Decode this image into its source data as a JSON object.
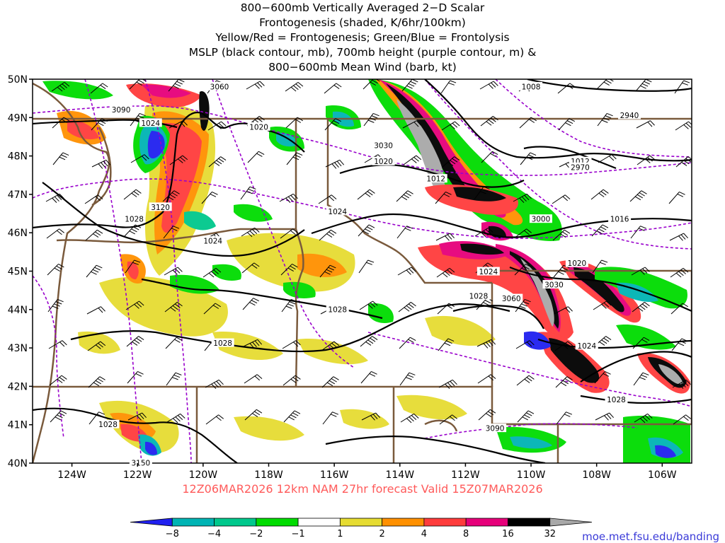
{
  "title_lines": [
    "800−600mb Vertically Averaged 2−D Scalar",
    "Frontogenesis (shaded, K/6hr/100km)",
    "Yellow/Red = Frontogenesis;  Green/Blue = Frontolysis",
    "MSLP (black contour, mb), 700mb height (purple contour, m) &",
    "800−600mb Mean Wind (barb, kt)"
  ],
  "footer_run": "12Z06MAR2026  12km  NAM  27hr  forecast  Valid  15Z07MAR2026",
  "footer_url": "moe.met.fsu.edu/banding",
  "colors": {
    "footer_run": "#ff5a5a",
    "footer_url": "#3a3ad8",
    "border": "#7a5a3c",
    "mslp": "#000000",
    "height": "#9900cc"
  },
  "chart_data": {
    "type": "map",
    "lat_range": [
      40,
      50
    ],
    "lon_range": [
      -125.2,
      -105.1
    ],
    "lat_ticks": [
      {
        "v": 50,
        "label": "50N"
      },
      {
        "v": 49,
        "label": "49N"
      },
      {
        "v": 48,
        "label": "48N"
      },
      {
        "v": 47,
        "label": "47N"
      },
      {
        "v": 46,
        "label": "46N"
      },
      {
        "v": 45,
        "label": "45N"
      },
      {
        "v": 44,
        "label": "44N"
      },
      {
        "v": 43,
        "label": "43N"
      },
      {
        "v": 42,
        "label": "42N"
      },
      {
        "v": 41,
        "label": "41N"
      },
      {
        "v": 40,
        "label": "40N"
      }
    ],
    "lon_ticks": [
      {
        "v": -124,
        "label": "124W"
      },
      {
        "v": -122,
        "label": "122W"
      },
      {
        "v": -120,
        "label": "120W"
      },
      {
        "v": -118,
        "label": "118W"
      },
      {
        "v": -116,
        "label": "116W"
      },
      {
        "v": -114,
        "label": "114W"
      },
      {
        "v": -112,
        "label": "112W"
      },
      {
        "v": -110,
        "label": "110W"
      },
      {
        "v": -108,
        "label": "108W"
      },
      {
        "v": -106,
        "label": "106W"
      }
    ],
    "colorbar": {
      "bins": [
        {
          "color": "#2020f0"
        },
        {
          "color": "#00b4b4"
        },
        {
          "color": "#00c88c"
        },
        {
          "color": "#00dc00"
        },
        {
          "color": "#ffffff"
        },
        {
          "color": "#e6dc32"
        },
        {
          "color": "#ff9000"
        },
        {
          "color": "#ff3c3c"
        },
        {
          "color": "#e6007a"
        },
        {
          "color": "#000000"
        },
        {
          "color": "#a8a8a8"
        }
      ],
      "labels": [
        "−8",
        "−4",
        "−2",
        "−1",
        "1",
        "2",
        "4",
        "8",
        "16",
        "32"
      ]
    },
    "mslp_labels": [
      {
        "text": "1028",
        "lat": 46.35,
        "lon": -122.1
      },
      {
        "text": "1024",
        "lat": 45.78,
        "lon": -119.7
      },
      {
        "text": "1028",
        "lat": 43.12,
        "lon": -119.4
      },
      {
        "text": "1028",
        "lat": 41.0,
        "lon": -122.9
      },
      {
        "text": "1028",
        "lat": 44.0,
        "lon": -115.9
      },
      {
        "text": "1024",
        "lat": 46.55,
        "lon": -115.9
      },
      {
        "text": "1020",
        "lat": 47.85,
        "lon": -114.5
      },
      {
        "text": "1020",
        "lat": 48.75,
        "lon": -118.3
      },
      {
        "text": "1024",
        "lat": 48.85,
        "lon": -121.6
      },
      {
        "text": "1012",
        "lat": 47.4,
        "lon": -112.9
      },
      {
        "text": "1016",
        "lat": 46.35,
        "lon": -107.3
      },
      {
        "text": "1020",
        "lat": 45.2,
        "lon": -108.6
      },
      {
        "text": "1024",
        "lat": 44.98,
        "lon": -111.3
      },
      {
        "text": "1028",
        "lat": 44.35,
        "lon": -111.6
      },
      {
        "text": "1024",
        "lat": 43.05,
        "lon": -108.3
      },
      {
        "text": "1028",
        "lat": 41.65,
        "lon": -107.4
      },
      {
        "text": "1008",
        "lat": 49.8,
        "lon": -110.0
      },
      {
        "text": "1012",
        "lat": 47.85,
        "lon": -108.5
      }
    ],
    "height_labels": [
      {
        "text": "3090",
        "lat": 49.2,
        "lon": -122.5
      },
      {
        "text": "3060",
        "lat": 49.8,
        "lon": -119.5
      },
      {
        "text": "3030",
        "lat": 48.27,
        "lon": -114.5
      },
      {
        "text": "3120",
        "lat": 46.66,
        "lon": -121.3
      },
      {
        "text": "3000",
        "lat": 46.35,
        "lon": -109.7
      },
      {
        "text": "3030",
        "lat": 44.64,
        "lon": -109.3
      },
      {
        "text": "3060",
        "lat": 44.28,
        "lon": -110.6
      },
      {
        "text": "2940",
        "lat": 49.05,
        "lon": -107.0
      },
      {
        "text": "2970",
        "lat": 47.7,
        "lon": -108.5
      },
      {
        "text": "3090",
        "lat": 40.9,
        "lon": -111.1
      },
      {
        "text": "3150",
        "lat": 40.0,
        "lon": -121.9
      }
    ]
  }
}
